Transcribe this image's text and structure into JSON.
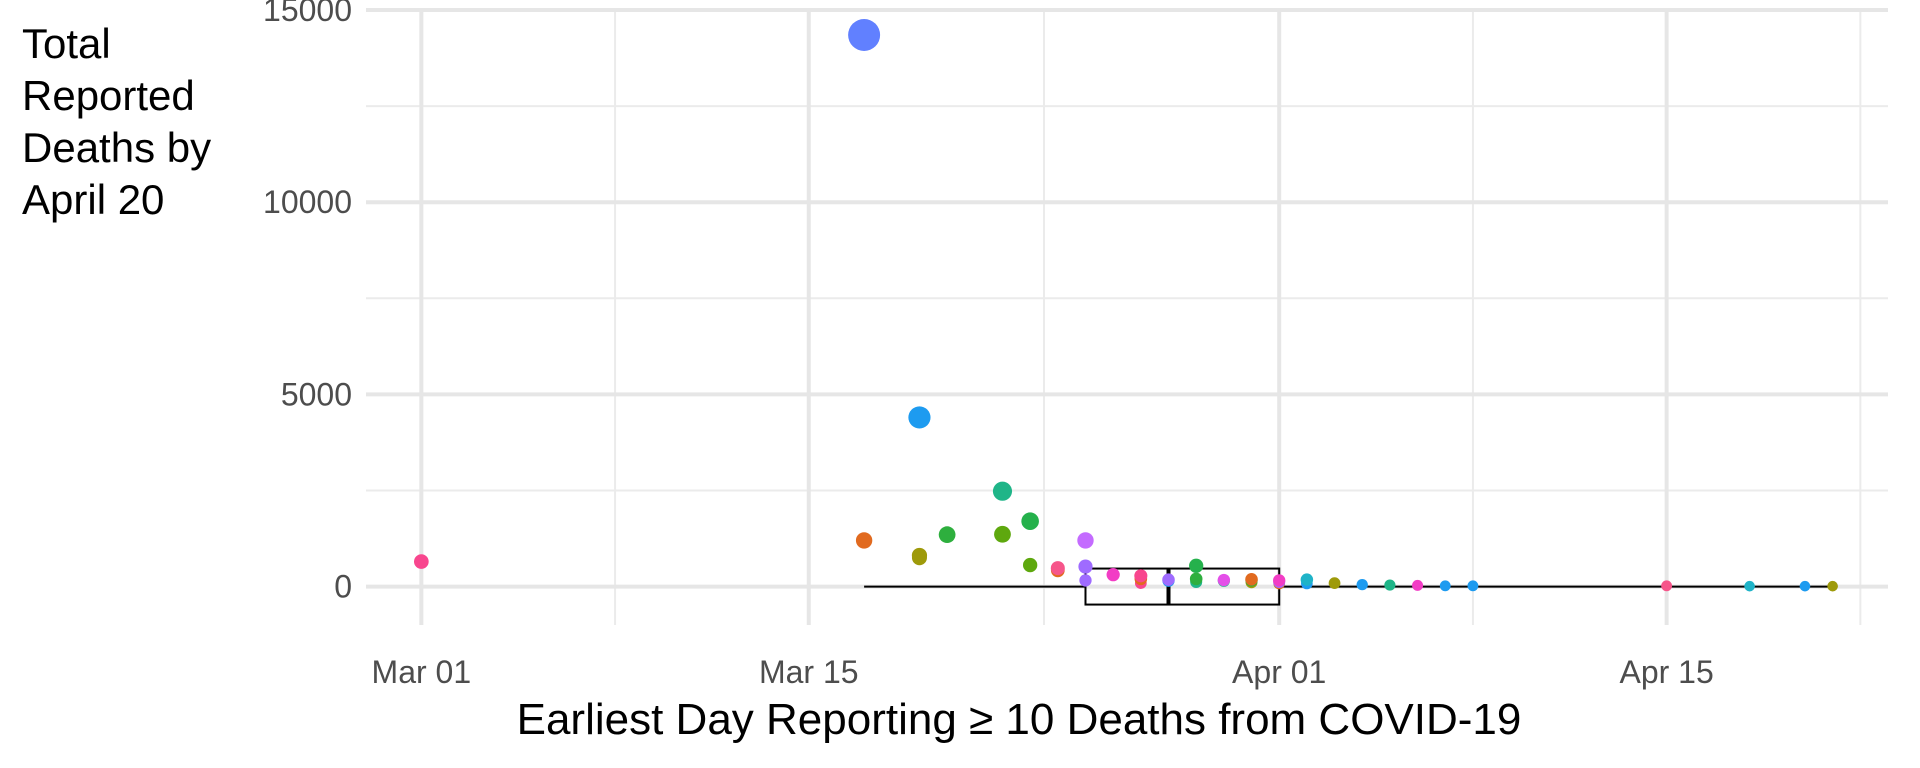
{
  "chart_data": {
    "type": "scatter",
    "title": "",
    "xlabel": "Earliest Day Reporting ≥ 10 Deaths from COVID-19",
    "ylabel_lines": [
      "Total",
      "Reported",
      "Deaths by",
      "April 20"
    ],
    "xlim": [
      "2020-02-28",
      "2020-04-23"
    ],
    "ylim": [
      -1000,
      15000
    ],
    "x_ticks": [
      {
        "date": "2020-03-01",
        "label": "Mar 01"
      },
      {
        "date": "2020-03-15",
        "label": "Mar 15"
      },
      {
        "date": "2020-04-01",
        "label": "Apr 01"
      },
      {
        "date": "2020-04-15",
        "label": "Apr 15"
      }
    ],
    "y_ticks": [
      {
        "value": 0,
        "label": "0"
      },
      {
        "value": 5000,
        "label": "5000"
      },
      {
        "value": 10000,
        "label": "10000"
      },
      {
        "value": 15000,
        "label": "15000"
      }
    ],
    "grid": true,
    "boxplot": {
      "min": "2020-03-17",
      "q1": "2020-03-25",
      "median": "2020-03-28",
      "q3": "2020-04-01",
      "max": "2020-04-21",
      "y": 0,
      "color": "#000000"
    },
    "points": [
      {
        "x": "2020-03-01",
        "y": 650,
        "color": "#F8468E"
      },
      {
        "x": "2020-03-17",
        "y": 14350,
        "color": "#6180FF"
      },
      {
        "x": "2020-03-17",
        "y": 1200,
        "color": "#E16A1F"
      },
      {
        "x": "2020-03-19",
        "y": 4400,
        "color": "#1D9BF0"
      },
      {
        "x": "2020-03-19",
        "y": 750,
        "color": "#9E9A0A"
      },
      {
        "x": "2020-03-19",
        "y": 810,
        "color": "#9E9A0A"
      },
      {
        "x": "2020-03-20",
        "y": 1350,
        "color": "#2EAF3E"
      },
      {
        "x": "2020-03-22",
        "y": 2480,
        "color": "#1FB588"
      },
      {
        "x": "2020-03-22",
        "y": 1360,
        "color": "#5EA80E"
      },
      {
        "x": "2020-03-23",
        "y": 1700,
        "color": "#25B14C"
      },
      {
        "x": "2020-03-23",
        "y": 560,
        "color": "#5EA80E"
      },
      {
        "x": "2020-03-25",
        "y": 1200,
        "color": "#C46BFF"
      },
      {
        "x": "2020-03-24",
        "y": 480,
        "color": "#F6558A"
      },
      {
        "x": "2020-03-24",
        "y": 420,
        "color": "#E16A1F"
      },
      {
        "x": "2020-03-25",
        "y": 520,
        "color": "#9F6BFF"
      },
      {
        "x": "2020-03-25",
        "y": 160,
        "color": "#9F6BFF"
      },
      {
        "x": "2020-03-26",
        "y": 310,
        "color": "#F23DC5"
      },
      {
        "x": "2020-03-27",
        "y": 200,
        "color": "#E16A1F"
      },
      {
        "x": "2020-03-27",
        "y": 90,
        "color": "#F8468E"
      },
      {
        "x": "2020-03-27",
        "y": 280,
        "color": "#F8468E"
      },
      {
        "x": "2020-03-28",
        "y": 180,
        "color": "#9F6BFF"
      },
      {
        "x": "2020-03-28",
        "y": 150,
        "color": "#1D9BF0"
      },
      {
        "x": "2020-03-29",
        "y": 200,
        "color": "#2EAF3E"
      },
      {
        "x": "2020-03-29",
        "y": 120,
        "color": "#1FB588"
      },
      {
        "x": "2020-03-29",
        "y": 540,
        "color": "#25B14C"
      },
      {
        "x": "2020-03-30",
        "y": 170,
        "color": "#E44FE8"
      },
      {
        "x": "2020-03-30",
        "y": 150,
        "color": "#1FB588"
      },
      {
        "x": "2020-03-31",
        "y": 190,
        "color": "#E16A1F"
      },
      {
        "x": "2020-03-31",
        "y": 110,
        "color": "#9E9A0A"
      },
      {
        "x": "2020-03-31",
        "y": 160,
        "color": "#2EAF3E"
      },
      {
        "x": "2020-04-01",
        "y": 80,
        "color": "#E16A1F"
      },
      {
        "x": "2020-04-01",
        "y": 160,
        "color": "#F23DC5"
      },
      {
        "x": "2020-04-01",
        "y": 120,
        "color": "#9F6BFF"
      },
      {
        "x": "2020-04-02",
        "y": 180,
        "color": "#1FB3C8"
      },
      {
        "x": "2020-04-02",
        "y": 80,
        "color": "#1D9BF0"
      },
      {
        "x": "2020-04-03",
        "y": 90,
        "color": "#9E9A0A"
      },
      {
        "x": "2020-04-04",
        "y": 50,
        "color": "#1D9BF0"
      },
      {
        "x": "2020-04-05",
        "y": 40,
        "color": "#1FB588"
      },
      {
        "x": "2020-04-06",
        "y": 30,
        "color": "#F23DC5"
      },
      {
        "x": "2020-04-07",
        "y": 20,
        "color": "#1D9BF0"
      },
      {
        "x": "2020-04-08",
        "y": 20,
        "color": "#1D9BF0"
      },
      {
        "x": "2020-04-15",
        "y": 20,
        "color": "#F6558A"
      },
      {
        "x": "2020-04-18",
        "y": 10,
        "color": "#1FB3C8"
      },
      {
        "x": "2020-04-20",
        "y": 10,
        "color": "#1D9BF0"
      },
      {
        "x": "2020-04-21",
        "y": 10,
        "color": "#9E9A0A"
      }
    ]
  }
}
